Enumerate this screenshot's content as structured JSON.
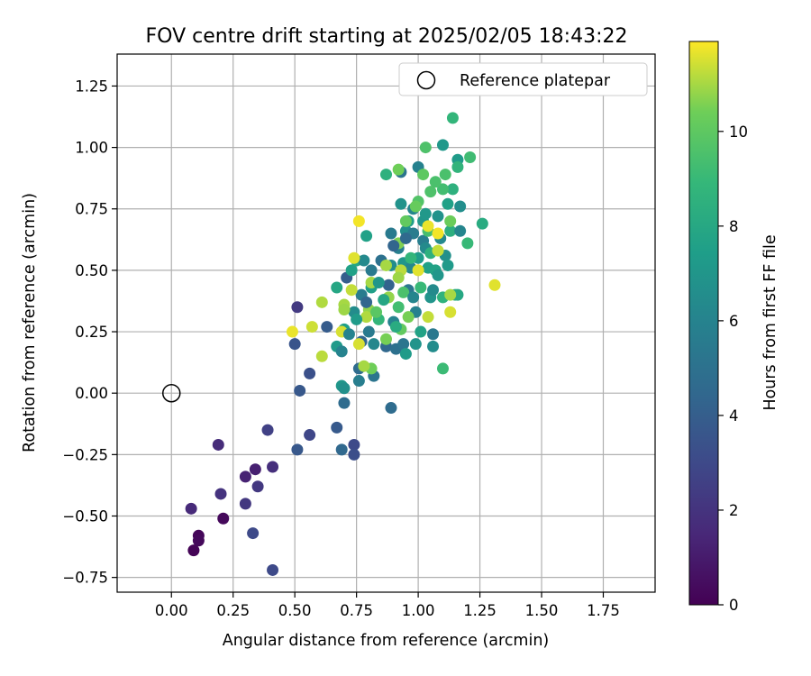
{
  "chart_data": {
    "type": "scatter",
    "title": "FOV centre drift starting at 2025/02/05 18:43:22",
    "xlabel": "Angular distance from reference (arcmin)",
    "ylabel": "Rotation from reference (arcmin)",
    "xlim": [
      -0.22,
      1.96
    ],
    "ylim": [
      -0.81,
      1.38
    ],
    "xticks": [
      "0.00",
      "0.25",
      "0.50",
      "0.75",
      "1.00",
      "1.25",
      "1.50",
      "1.75"
    ],
    "yticks": [
      "−0.75",
      "−0.50",
      "−0.25",
      "0.00",
      "0.25",
      "0.50",
      "0.75",
      "1.00",
      "1.25"
    ],
    "grid": true,
    "legend": {
      "position": "top-right",
      "entries": [
        "Reference platepar"
      ]
    },
    "reference_point": {
      "x": 0.0,
      "y": 0.0
    },
    "colorbar": {
      "label": "Hours from first FF file",
      "range": [
        0,
        11.9
      ],
      "ticks": [
        "0",
        "2",
        "4",
        "6",
        "8",
        "10"
      ],
      "colormap": "viridis"
    },
    "points": [
      {
        "x": 0.09,
        "y": -0.64,
        "c": 0.1
      },
      {
        "x": 0.11,
        "y": -0.58,
        "c": 0.2
      },
      {
        "x": 0.11,
        "y": -0.6,
        "c": 0.3
      },
      {
        "x": 0.21,
        "y": -0.51,
        "c": 0.3
      },
      {
        "x": 0.08,
        "y": -0.47,
        "c": 1.6
      },
      {
        "x": 0.2,
        "y": -0.41,
        "c": 2.0
      },
      {
        "x": 0.19,
        "y": -0.21,
        "c": 1.7
      },
      {
        "x": 0.3,
        "y": -0.34,
        "c": 1.3
      },
      {
        "x": 0.34,
        "y": -0.31,
        "c": 1.2
      },
      {
        "x": 0.35,
        "y": -0.38,
        "c": 2.2
      },
      {
        "x": 0.3,
        "y": -0.45,
        "c": 2.2
      },
      {
        "x": 0.33,
        "y": -0.57,
        "c": 3.0
      },
      {
        "x": 0.41,
        "y": -0.3,
        "c": 1.8
      },
      {
        "x": 0.39,
        "y": -0.15,
        "c": 2.6
      },
      {
        "x": 0.41,
        "y": -0.72,
        "c": 3.0
      },
      {
        "x": 0.51,
        "y": 0.35,
        "c": 2.3
      },
      {
        "x": 0.5,
        "y": 0.2,
        "c": 3.5
      },
      {
        "x": 0.52,
        "y": 0.01,
        "c": 3.7
      },
      {
        "x": 0.51,
        "y": -0.23,
        "c": 3.7
      },
      {
        "x": 0.56,
        "y": 0.08,
        "c": 3.3
      },
      {
        "x": 0.56,
        "y": -0.17,
        "c": 2.9
      },
      {
        "x": 0.63,
        "y": 0.27,
        "c": 3.9
      },
      {
        "x": 0.67,
        "y": -0.14,
        "c": 3.8
      },
      {
        "x": 0.69,
        "y": -0.23,
        "c": 4.5
      },
      {
        "x": 0.7,
        "y": -0.04,
        "c": 4.7
      },
      {
        "x": 0.74,
        "y": -0.21,
        "c": 3.0
      },
      {
        "x": 0.74,
        "y": -0.25,
        "c": 3.2
      },
      {
        "x": 0.69,
        "y": 0.03,
        "c": 7.0
      },
      {
        "x": 0.7,
        "y": 0.02,
        "c": 6.7
      },
      {
        "x": 0.67,
        "y": 0.19,
        "c": 7.2
      },
      {
        "x": 0.69,
        "y": 0.17,
        "c": 6.0
      },
      {
        "x": 0.7,
        "y": 0.26,
        "c": 7.5
      },
      {
        "x": 0.71,
        "y": 0.47,
        "c": 4.0
      },
      {
        "x": 0.67,
        "y": 0.43,
        "c": 7.9
      },
      {
        "x": 0.73,
        "y": 0.5,
        "c": 7.6
      },
      {
        "x": 0.75,
        "y": 0.54,
        "c": 8.0
      },
      {
        "x": 0.74,
        "y": 0.33,
        "c": 6.5
      },
      {
        "x": 0.76,
        "y": 0.05,
        "c": 5.7
      },
      {
        "x": 0.76,
        "y": 0.1,
        "c": 4.7
      },
      {
        "x": 0.77,
        "y": 0.21,
        "c": 4.4
      },
      {
        "x": 0.77,
        "y": 0.4,
        "c": 5.6
      },
      {
        "x": 0.78,
        "y": 0.54,
        "c": 6.3
      },
      {
        "x": 0.79,
        "y": 0.64,
        "c": 7.6
      },
      {
        "x": 0.81,
        "y": 0.5,
        "c": 5.5
      },
      {
        "x": 0.82,
        "y": 0.07,
        "c": 5.2
      },
      {
        "x": 0.8,
        "y": 0.25,
        "c": 5.5
      },
      {
        "x": 0.81,
        "y": 0.43,
        "c": 7.5
      },
      {
        "x": 0.84,
        "y": 0.3,
        "c": 8.8
      },
      {
        "x": 0.85,
        "y": 0.54,
        "c": 5.0
      },
      {
        "x": 0.87,
        "y": 0.19,
        "c": 4.5
      },
      {
        "x": 0.89,
        "y": -0.06,
        "c": 4.7
      },
      {
        "x": 0.88,
        "y": 0.44,
        "c": 4.2
      },
      {
        "x": 0.89,
        "y": 0.52,
        "c": 6.5
      },
      {
        "x": 0.89,
        "y": 0.65,
        "c": 5.5
      },
      {
        "x": 0.9,
        "y": 0.29,
        "c": 6.0
      },
      {
        "x": 0.91,
        "y": 0.18,
        "c": 5.0
      },
      {
        "x": 0.92,
        "y": 0.35,
        "c": 9.3
      },
      {
        "x": 0.92,
        "y": 0.59,
        "c": 5.8
      },
      {
        "x": 0.93,
        "y": 0.77,
        "c": 6.8
      },
      {
        "x": 0.93,
        "y": 0.9,
        "c": 5.2
      },
      {
        "x": 0.94,
        "y": 0.53,
        "c": 7.0
      },
      {
        "x": 0.94,
        "y": 0.2,
        "c": 5.2
      },
      {
        "x": 0.95,
        "y": 0.16,
        "c": 7.3
      },
      {
        "x": 0.96,
        "y": 0.42,
        "c": 5.3
      },
      {
        "x": 0.95,
        "y": 0.66,
        "c": 6.6
      },
      {
        "x": 0.96,
        "y": 0.7,
        "c": 7.4
      },
      {
        "x": 0.97,
        "y": 0.51,
        "c": 6.2
      },
      {
        "x": 0.98,
        "y": 0.75,
        "c": 6.1
      },
      {
        "x": 0.98,
        "y": 0.65,
        "c": 5.6
      },
      {
        "x": 0.99,
        "y": 0.33,
        "c": 5.9
      },
      {
        "x": 1.0,
        "y": 0.92,
        "c": 5.9
      },
      {
        "x": 1.0,
        "y": 0.55,
        "c": 7.4
      },
      {
        "x": 1.01,
        "y": 0.25,
        "c": 7.7
      },
      {
        "x": 1.02,
        "y": 0.7,
        "c": 7.0
      },
      {
        "x": 1.02,
        "y": 0.62,
        "c": 5.7
      },
      {
        "x": 1.03,
        "y": 0.59,
        "c": 6.4
      },
      {
        "x": 1.03,
        "y": 0.73,
        "c": 7.1
      },
      {
        "x": 1.04,
        "y": 0.51,
        "c": 7.6
      },
      {
        "x": 1.05,
        "y": 0.57,
        "c": 8.5
      },
      {
        "x": 1.05,
        "y": 0.39,
        "c": 6.9
      },
      {
        "x": 1.06,
        "y": 0.19,
        "c": 6.5
      },
      {
        "x": 1.06,
        "y": 0.24,
        "c": 5.4
      },
      {
        "x": 1.07,
        "y": 0.5,
        "c": 7.7
      },
      {
        "x": 1.08,
        "y": 0.48,
        "c": 7.0
      },
      {
        "x": 1.08,
        "y": 0.72,
        "c": 6.8
      },
      {
        "x": 1.09,
        "y": 0.63,
        "c": 6.3
      },
      {
        "x": 1.1,
        "y": 1.01,
        "c": 7.1
      },
      {
        "x": 1.1,
        "y": 0.39,
        "c": 8.6
      },
      {
        "x": 1.11,
        "y": 0.56,
        "c": 6.7
      },
      {
        "x": 1.12,
        "y": 0.77,
        "c": 7.6
      },
      {
        "x": 1.13,
        "y": 0.66,
        "c": 8.4
      },
      {
        "x": 1.14,
        "y": 0.83,
        "c": 8.5
      },
      {
        "x": 1.15,
        "y": 0.4,
        "c": 8.6
      },
      {
        "x": 1.16,
        "y": 0.95,
        "c": 7.3
      },
      {
        "x": 1.17,
        "y": 0.76,
        "c": 6.6
      },
      {
        "x": 1.16,
        "y": 0.4,
        "c": 8.0
      },
      {
        "x": 1.26,
        "y": 0.69,
        "c": 8.2
      },
      {
        "x": 1.2,
        "y": 0.61,
        "c": 9.0
      },
      {
        "x": 1.21,
        "y": 0.96,
        "c": 9.2
      },
      {
        "x": 1.16,
        "y": 0.92,
        "c": 8.7
      },
      {
        "x": 1.14,
        "y": 1.12,
        "c": 8.8
      },
      {
        "x": 1.11,
        "y": 0.89,
        "c": 9.5
      },
      {
        "x": 1.1,
        "y": 0.1,
        "c": 9.1
      },
      {
        "x": 1.1,
        "y": 0.83,
        "c": 9.3
      },
      {
        "x": 1.07,
        "y": 0.86,
        "c": 9.5
      },
      {
        "x": 1.05,
        "y": 0.82,
        "c": 9.6
      },
      {
        "x": 1.04,
        "y": 0.66,
        "c": 9.4
      },
      {
        "x": 1.03,
        "y": 1.0,
        "c": 9.6
      },
      {
        "x": 1.0,
        "y": 0.78,
        "c": 9.7
      },
      {
        "x": 1.02,
        "y": 0.89,
        "c": 10.0
      },
      {
        "x": 0.99,
        "y": 0.76,
        "c": 10.2
      },
      {
        "x": 0.95,
        "y": 0.7,
        "c": 10.1
      },
      {
        "x": 0.92,
        "y": 0.91,
        "c": 10.4
      },
      {
        "x": 0.87,
        "y": 0.89,
        "c": 8.5
      },
      {
        "x": 0.92,
        "y": 0.61,
        "c": 10.6
      },
      {
        "x": 0.93,
        "y": 0.5,
        "c": 11.2
      },
      {
        "x": 0.92,
        "y": 0.47,
        "c": 10.9
      },
      {
        "x": 0.94,
        "y": 0.41,
        "c": 9.5
      },
      {
        "x": 0.96,
        "y": 0.31,
        "c": 10.5
      },
      {
        "x": 0.93,
        "y": 0.26,
        "c": 10.1
      },
      {
        "x": 0.88,
        "y": 0.39,
        "c": 10.8
      },
      {
        "x": 0.87,
        "y": 0.52,
        "c": 11.0
      },
      {
        "x": 0.87,
        "y": 0.22,
        "c": 10.5
      },
      {
        "x": 0.81,
        "y": 0.45,
        "c": 11.0
      },
      {
        "x": 0.8,
        "y": 0.34,
        "c": 10.8
      },
      {
        "x": 0.79,
        "y": 0.31,
        "c": 11.1
      },
      {
        "x": 0.81,
        "y": 0.1,
        "c": 10.4
      },
      {
        "x": 0.78,
        "y": 0.11,
        "c": 11.0
      },
      {
        "x": 0.76,
        "y": 0.2,
        "c": 11.5
      },
      {
        "x": 0.73,
        "y": 0.42,
        "c": 11.3
      },
      {
        "x": 0.74,
        "y": 0.55,
        "c": 11.6
      },
      {
        "x": 0.76,
        "y": 0.7,
        "c": 11.8
      },
      {
        "x": 0.7,
        "y": 0.36,
        "c": 11.0
      },
      {
        "x": 0.7,
        "y": 0.34,
        "c": 10.9
      },
      {
        "x": 0.69,
        "y": 0.25,
        "c": 11.5
      },
      {
        "x": 0.61,
        "y": 0.37,
        "c": 11.1
      },
      {
        "x": 0.61,
        "y": 0.15,
        "c": 11.2
      },
      {
        "x": 0.57,
        "y": 0.27,
        "c": 11.4
      },
      {
        "x": 0.49,
        "y": 0.25,
        "c": 11.7
      },
      {
        "x": 1.04,
        "y": 0.31,
        "c": 11.3
      },
      {
        "x": 1.0,
        "y": 0.5,
        "c": 11.6
      },
      {
        "x": 1.04,
        "y": 0.68,
        "c": 11.7
      },
      {
        "x": 1.08,
        "y": 0.65,
        "c": 11.8
      },
      {
        "x": 1.08,
        "y": 0.58,
        "c": 11.3
      },
      {
        "x": 1.13,
        "y": 0.4,
        "c": 11.0
      },
      {
        "x": 1.13,
        "y": 0.33,
        "c": 11.5
      },
      {
        "x": 1.13,
        "y": 0.7,
        "c": 10.3
      },
      {
        "x": 1.31,
        "y": 0.44,
        "c": 11.6
      },
      {
        "x": 0.83,
        "y": 0.33,
        "c": 9.9
      },
      {
        "x": 0.97,
        "y": 0.55,
        "c": 8.8
      },
      {
        "x": 0.91,
        "y": 0.27,
        "c": 8.2
      },
      {
        "x": 0.86,
        "y": 0.38,
        "c": 7.9
      },
      {
        "x": 0.84,
        "y": 0.45,
        "c": 7.0
      },
      {
        "x": 0.9,
        "y": 0.6,
        "c": 4.3
      },
      {
        "x": 0.95,
        "y": 0.63,
        "c": 4.6
      },
      {
        "x": 0.79,
        "y": 0.37,
        "c": 4.4
      },
      {
        "x": 0.72,
        "y": 0.24,
        "c": 6.0
      },
      {
        "x": 0.75,
        "y": 0.3,
        "c": 7.3
      },
      {
        "x": 0.82,
        "y": 0.2,
        "c": 6.2
      },
      {
        "x": 1.01,
        "y": 0.43,
        "c": 9.0
      },
      {
        "x": 1.06,
        "y": 0.42,
        "c": 6.4
      },
      {
        "x": 0.98,
        "y": 0.39,
        "c": 6.1
      },
      {
        "x": 0.99,
        "y": 0.2,
        "c": 6.9
      },
      {
        "x": 1.12,
        "y": 0.52,
        "c": 7.2
      },
      {
        "x": 1.17,
        "y": 0.66,
        "c": 6.1
      }
    ]
  }
}
